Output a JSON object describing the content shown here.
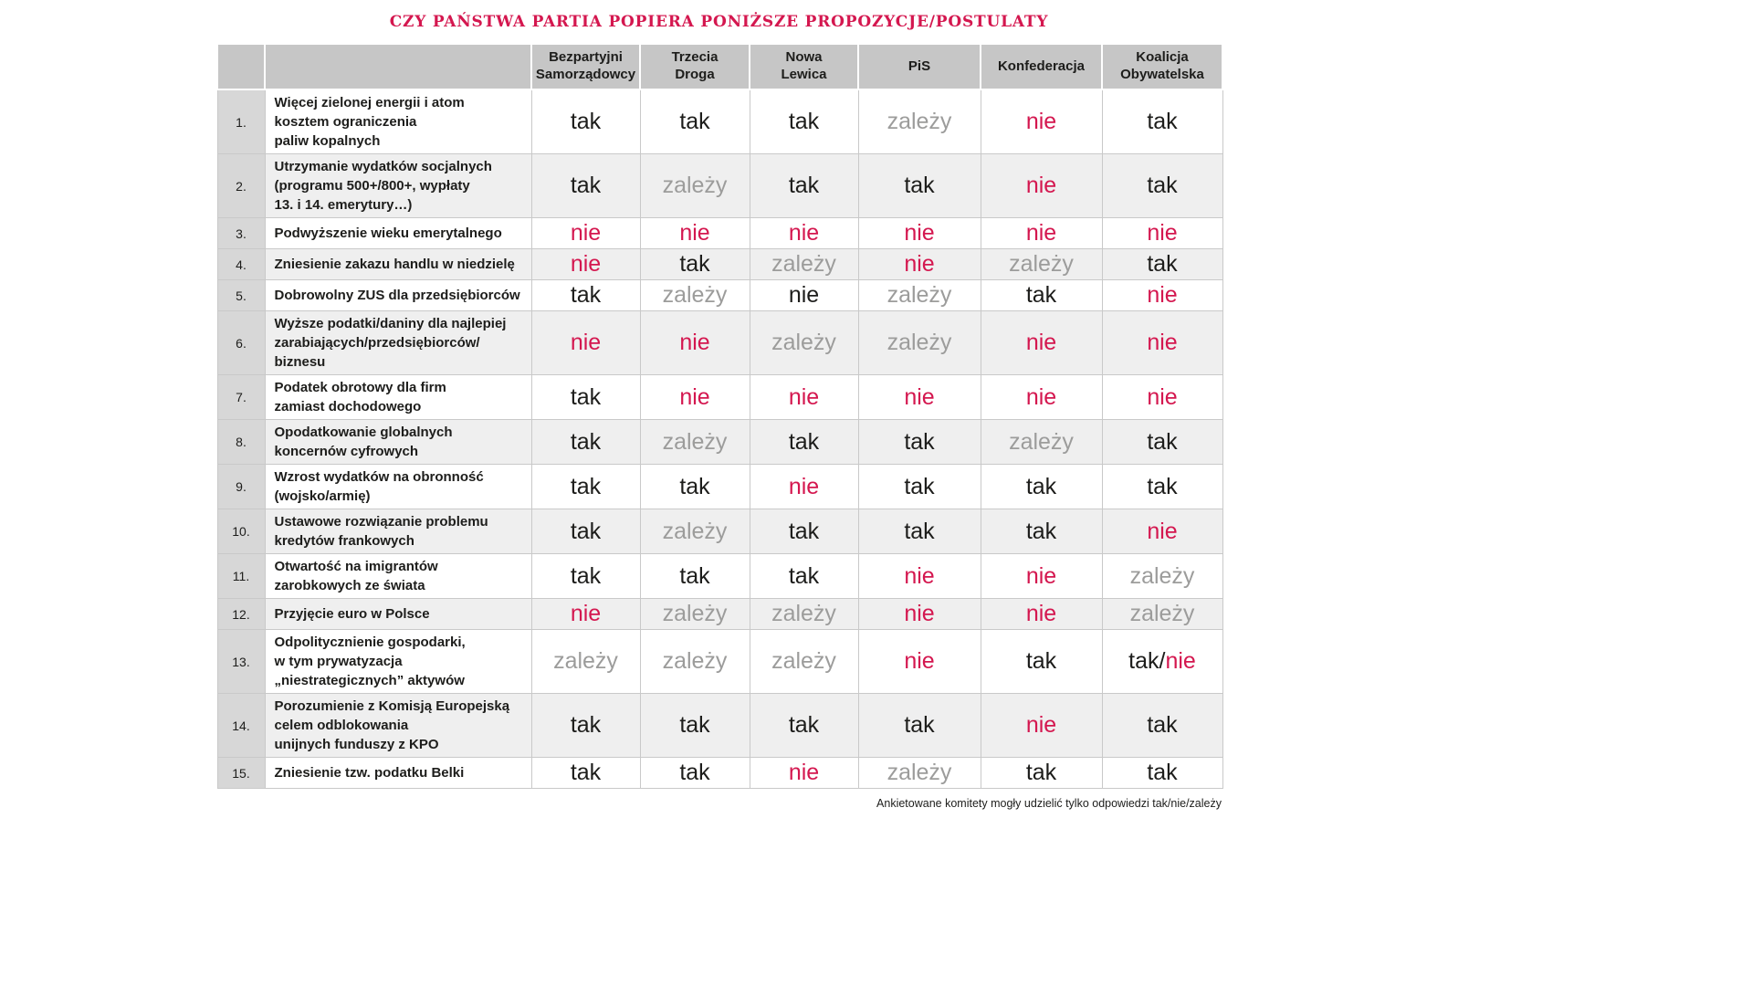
{
  "title": "CZY PAŃSTWA PARTIA POPIERA PONIŻSZE PROPOZYCJE/POSTULATY",
  "footer": "Ankietowane komitety mogły udzielić tylko odpowiedzi tak/nie/zależy",
  "colors": {
    "accent_red": "#d4174f",
    "answer_dark": "#1d1d1b",
    "answer_gray": "#9c9c9b",
    "header_bg": "#c6c6c6",
    "number_col_bg": "#d7d7d7",
    "alt_row_bg": "#efefef"
  },
  "chart_data": {
    "type": "table",
    "columns": [
      "Bezpartyjni\nSamorządowcy",
      "Trzecia\nDroga",
      "Nowa\nLewica",
      "PiS",
      "Konfederacja",
      "Koalicja\nObywatelska"
    ],
    "rows": [
      {
        "num": "1.",
        "proposal": "Więcej zielonej energii i atom\nkosztem ograniczenia\npaliw kopalnych",
        "answers": [
          {
            "text": "tak",
            "color": "dark"
          },
          {
            "text": "tak",
            "color": "dark"
          },
          {
            "text": "tak",
            "color": "dark"
          },
          {
            "text": "zależy",
            "color": "gray"
          },
          {
            "text": "nie",
            "color": "red"
          },
          {
            "text": "tak",
            "color": "dark"
          }
        ]
      },
      {
        "num": "2.",
        "proposal": "Utrzymanie wydatków socjalnych\n(programu 500+/800+, wypłaty\n13. i 14. emerytury…)",
        "answers": [
          {
            "text": "tak",
            "color": "dark"
          },
          {
            "text": "zależy",
            "color": "gray"
          },
          {
            "text": "tak",
            "color": "dark"
          },
          {
            "text": "tak",
            "color": "dark"
          },
          {
            "text": "nie",
            "color": "red"
          },
          {
            "text": "tak",
            "color": "dark"
          }
        ]
      },
      {
        "num": "3.",
        "proposal": "Podwyższenie wieku emerytalnego",
        "answers": [
          {
            "text": "nie",
            "color": "red"
          },
          {
            "text": "nie",
            "color": "red"
          },
          {
            "text": "nie",
            "color": "red"
          },
          {
            "text": "nie",
            "color": "red"
          },
          {
            "text": "nie",
            "color": "red"
          },
          {
            "text": "nie",
            "color": "red"
          }
        ]
      },
      {
        "num": "4.",
        "proposal": "Zniesienie zakazu handlu w niedzielę",
        "answers": [
          {
            "text": "nie",
            "color": "red"
          },
          {
            "text": "tak",
            "color": "dark"
          },
          {
            "text": "zależy",
            "color": "gray"
          },
          {
            "text": "nie",
            "color": "red"
          },
          {
            "text": "zależy",
            "color": "gray"
          },
          {
            "text": "tak",
            "color": "dark"
          }
        ]
      },
      {
        "num": "5.",
        "proposal": "Dobrowolny ZUS dla przedsiębiorców",
        "answers": [
          {
            "text": "tak",
            "color": "dark"
          },
          {
            "text": "zależy",
            "color": "gray"
          },
          {
            "text": "nie",
            "color": "dark"
          },
          {
            "text": "zależy",
            "color": "gray"
          },
          {
            "text": "tak",
            "color": "dark"
          },
          {
            "text": "nie",
            "color": "red"
          }
        ]
      },
      {
        "num": "6.",
        "proposal": "Wyższe podatki/daniny dla najlepiej\nzarabiających/przedsiębiorców/\nbiznesu",
        "answers": [
          {
            "text": "nie",
            "color": "red"
          },
          {
            "text": "nie",
            "color": "red"
          },
          {
            "text": "zależy",
            "color": "gray"
          },
          {
            "text": "zależy",
            "color": "gray"
          },
          {
            "text": "nie",
            "color": "red"
          },
          {
            "text": "nie",
            "color": "red"
          }
        ]
      },
      {
        "num": "7.",
        "proposal": "Podatek obrotowy dla firm\nzamiast dochodowego",
        "answers": [
          {
            "text": "tak",
            "color": "dark"
          },
          {
            "text": "nie",
            "color": "red"
          },
          {
            "text": "nie",
            "color": "red"
          },
          {
            "text": "nie",
            "color": "red"
          },
          {
            "text": "nie",
            "color": "red"
          },
          {
            "text": "nie",
            "color": "red"
          }
        ]
      },
      {
        "num": "8.",
        "proposal": "Opodatkowanie globalnych\nkoncernów cyfrowych",
        "answers": [
          {
            "text": "tak",
            "color": "dark"
          },
          {
            "text": "zależy",
            "color": "gray"
          },
          {
            "text": "tak",
            "color": "dark"
          },
          {
            "text": "tak",
            "color": "dark"
          },
          {
            "text": "zależy",
            "color": "gray"
          },
          {
            "text": "tak",
            "color": "dark"
          }
        ]
      },
      {
        "num": "9.",
        "proposal": "Wzrost wydatków na obronność\n(wojsko/armię)",
        "answers": [
          {
            "text": "tak",
            "color": "dark"
          },
          {
            "text": "tak",
            "color": "dark"
          },
          {
            "text": "nie",
            "color": "red"
          },
          {
            "text": "tak",
            "color": "dark"
          },
          {
            "text": "tak",
            "color": "dark"
          },
          {
            "text": "tak",
            "color": "dark"
          }
        ]
      },
      {
        "num": "10.",
        "proposal": "Ustawowe rozwiązanie problemu\nkredytów frankowych",
        "answers": [
          {
            "text": "tak",
            "color": "dark"
          },
          {
            "text": "zależy",
            "color": "gray"
          },
          {
            "text": "tak",
            "color": "dark"
          },
          {
            "text": "tak",
            "color": "dark"
          },
          {
            "text": "tak",
            "color": "dark"
          },
          {
            "text": "nie",
            "color": "red"
          }
        ]
      },
      {
        "num": "11.",
        "proposal": "Otwartość na imigrantów\nzarobkowych ze świata",
        "answers": [
          {
            "text": "tak",
            "color": "dark"
          },
          {
            "text": "tak",
            "color": "dark"
          },
          {
            "text": "tak",
            "color": "dark"
          },
          {
            "text": "nie",
            "color": "red"
          },
          {
            "text": "nie",
            "color": "red"
          },
          {
            "text": "zależy",
            "color": "gray"
          }
        ]
      },
      {
        "num": "12.",
        "proposal": "Przyjęcie euro w Polsce",
        "answers": [
          {
            "text": "nie",
            "color": "red"
          },
          {
            "text": "zależy",
            "color": "gray"
          },
          {
            "text": "zależy",
            "color": "gray"
          },
          {
            "text": "nie",
            "color": "red"
          },
          {
            "text": "nie",
            "color": "red"
          },
          {
            "text": "zależy",
            "color": "gray"
          }
        ]
      },
      {
        "num": "13.",
        "proposal": "Odpolitycznienie gospodarki,\nw tym prywatyzacja\n„niestrategicznych” aktywów",
        "answers": [
          {
            "text": "zależy",
            "color": "gray"
          },
          {
            "text": "zależy",
            "color": "gray"
          },
          {
            "text": "zależy",
            "color": "gray"
          },
          {
            "text": "nie",
            "color": "red"
          },
          {
            "text": "tak",
            "color": "dark"
          },
          {
            "text": "tak/nie",
            "color": "mixed"
          }
        ]
      },
      {
        "num": "14.",
        "proposal": "Porozumienie z Komisją Europejską\ncelem odblokowania\nunijnych funduszy z KPO",
        "answers": [
          {
            "text": "tak",
            "color": "dark"
          },
          {
            "text": "tak",
            "color": "dark"
          },
          {
            "text": "tak",
            "color": "dark"
          },
          {
            "text": "tak",
            "color": "dark"
          },
          {
            "text": "nie",
            "color": "red"
          },
          {
            "text": "tak",
            "color": "dark"
          }
        ]
      },
      {
        "num": "15.",
        "proposal": "Zniesienie tzw. podatku Belki",
        "answers": [
          {
            "text": "tak",
            "color": "dark"
          },
          {
            "text": "tak",
            "color": "dark"
          },
          {
            "text": "nie",
            "color": "red"
          },
          {
            "text": "zależy",
            "color": "gray"
          },
          {
            "text": "tak",
            "color": "dark"
          },
          {
            "text": "tak",
            "color": "dark"
          }
        ]
      }
    ]
  }
}
